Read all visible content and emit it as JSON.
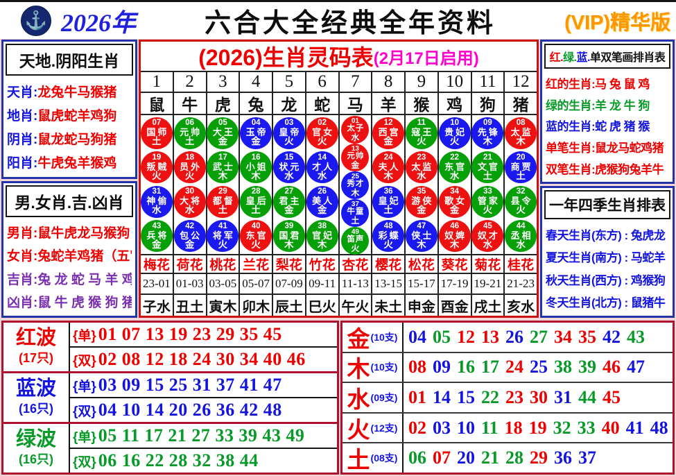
{
  "palette": {
    "red": "#ee0000",
    "green": "#089a28",
    "blue": "#1414e0",
    "magenta": "#ff00cc",
    "purple": "#7a2fb0",
    "orange": "#ff9500",
    "navy_border": "#2233aa",
    "red_border": "#cc1111",
    "dark_red_border": "#b01030"
  },
  "header": {
    "logo_icon": "anchor-emblem",
    "year": "2026年",
    "title": "六合大全经典全年资料",
    "vip": "(VIP)精华版"
  },
  "left_top": {
    "title": "天地.阴阳生肖",
    "items": [
      {
        "label": "天肖:",
        "value": "龙兔牛马猴猪"
      },
      {
        "label": "地肖:",
        "value": "鼠虎蛇羊鸡狗"
      },
      {
        "label": "阴肖:",
        "value": "鼠龙蛇马狗猪"
      },
      {
        "label": "阳肖:",
        "value": "牛虎兔羊猴鸡"
      }
    ]
  },
  "left_bottom": {
    "title": "男.女肖.吉.凶肖",
    "items": [
      {
        "text": "男肖:鼠牛虎龙马猴狗",
        "color": "red"
      },
      {
        "text": "女肖:兔蛇羊鸡猪（五宫）",
        "color": "red"
      },
      {
        "text": "吉肖:兔 龙 蛇 马 羊 鸡",
        "color": "purple"
      },
      {
        "text": "凶肖:鼠 牛 虎 猴 狗 猪",
        "color": "purple"
      }
    ]
  },
  "main_table": {
    "title": "(2026)生肖灵码表",
    "subtitle": "(2月17日启用)",
    "col_numbers": [
      "1",
      "2",
      "3",
      "4",
      "5",
      "6",
      "7",
      "8",
      "9",
      "10",
      "11",
      "12"
    ],
    "zodiacs": [
      "鼠",
      "牛",
      "虎",
      "兔",
      "龙",
      "蛇",
      "马",
      "羊",
      "猴",
      "鸡",
      "狗",
      "猪"
    ],
    "flowers": [
      "梅花",
      "荷花",
      "桃花",
      "兰花",
      "梨花",
      "竹花",
      "杏花",
      "樱花",
      "松花",
      "葵花",
      "菊花",
      "桂花"
    ],
    "times": [
      "23-01",
      "01-03",
      "03-05",
      "05-07",
      "07-09",
      "09-11",
      "11-13",
      "13-15",
      "15-17",
      "17-19",
      "19-21",
      "21-23"
    ],
    "branches": [
      "子水",
      "丑土",
      "寅木",
      "卯木",
      "辰土",
      "巳火",
      "午火",
      "未土",
      "申金",
      "酉金",
      "戌土",
      "亥水"
    ],
    "circles": [
      [
        [
          "07",
          "国师",
          "土",
          "r"
        ],
        [
          "19",
          "叛贼",
          "火",
          "r"
        ],
        [
          "31",
          "神偷",
          "水",
          "b"
        ],
        [
          "43",
          "兵将",
          "金",
          "g"
        ]
      ],
      [
        [
          "06",
          "元帅",
          "土",
          "g"
        ],
        [
          "18",
          "员外",
          "火",
          "r"
        ],
        [
          "30",
          "大将",
          "水",
          "r"
        ],
        [
          "42",
          "包公",
          "金",
          "b"
        ]
      ],
      [
        [
          "05",
          "大王",
          "金",
          "g"
        ],
        [
          "17",
          "武士",
          "木",
          "g"
        ],
        [
          "29",
          "都督",
          "土",
          "r"
        ],
        [
          "41",
          "将军",
          "火",
          "b"
        ]
      ],
      [
        [
          "04",
          "玉帝",
          "金",
          "b"
        ],
        [
          "16",
          "小姐",
          "木",
          "g"
        ],
        [
          "28",
          "皇后",
          "土",
          "g"
        ],
        [
          "40",
          "东官",
          "火",
          "r"
        ]
      ],
      [
        [
          "03",
          "皇帝",
          "火",
          "b"
        ],
        [
          "15",
          "状元",
          "水",
          "b"
        ],
        [
          "27",
          "君主",
          "金",
          "g"
        ],
        [
          "39",
          "国君",
          "木",
          "g"
        ]
      ],
      [
        [
          "02",
          "官女",
          "火",
          "r"
        ],
        [
          "14",
          "才人",
          "水",
          "b"
        ],
        [
          "26",
          "美人",
          "金",
          "b"
        ],
        [
          "38",
          "官妃",
          "木",
          "g"
        ]
      ],
      [
        [
          "01",
          "太子",
          "水",
          "r"
        ],
        [
          "13",
          "元帅",
          "金",
          "r"
        ],
        [
          "25",
          "秀才",
          "木",
          "b"
        ],
        [
          "37",
          "牛童",
          "土",
          "b"
        ],
        [
          "49",
          "笛声",
          "火",
          "g"
        ]
      ],
      [
        [
          "12",
          "西宫",
          "金",
          "r"
        ],
        [
          "24",
          "夫人",
          "木",
          "r"
        ],
        [
          "36",
          "皇妃",
          "土",
          "b"
        ],
        [
          "48",
          "彩蝶",
          "火",
          "b"
        ]
      ],
      [
        [
          "11",
          "寇王",
          "火",
          "g"
        ],
        [
          "23",
          "太监",
          "水",
          "r"
        ],
        [
          "35",
          "游侠",
          "金",
          "r"
        ],
        [
          "47",
          "侠士",
          "木",
          "b"
        ]
      ],
      [
        [
          "10",
          "贵妃",
          "火",
          "b"
        ],
        [
          "22",
          "东官",
          "水",
          "g"
        ],
        [
          "34",
          "歌女",
          "金",
          "r"
        ],
        [
          "46",
          "奴婢",
          "木",
          "r"
        ]
      ],
      [
        [
          "09",
          "先锋",
          "木",
          "b"
        ],
        [
          "21",
          "文官",
          "土",
          "g"
        ],
        [
          "33",
          "管家",
          "火",
          "g"
        ],
        [
          "45",
          "奴才",
          "水",
          "r"
        ]
      ],
      [
        [
          "08",
          "太监",
          "木",
          "r"
        ],
        [
          "20",
          "商贾",
          "土",
          "b"
        ],
        [
          "32",
          "县令",
          "火",
          "g"
        ],
        [
          "44",
          "丞相",
          "水",
          "g"
        ]
      ]
    ]
  },
  "right_top": {
    "title_parts": [
      {
        "text": "红.",
        "color": "red"
      },
      {
        "text": "绿.",
        "color": "green"
      },
      {
        "text": "蓝.",
        "color": "blue"
      },
      {
        "text": "单双笔画排肖表",
        "color": "black"
      }
    ],
    "items": [
      {
        "text": "红的生肖:马 兔 鼠 鸡",
        "color": "red"
      },
      {
        "text": "绿的生肖:羊 龙 牛 狗",
        "color": "green"
      },
      {
        "text": "蓝的生肖:蛇 虎 猪 猴",
        "color": "blue"
      },
      {
        "text": "单笔生肖:鼠龙马蛇鸡猪",
        "color": "red"
      },
      {
        "text": "双笔生肖:虎猴狗兔羊牛",
        "color": "red"
      }
    ]
  },
  "right_bottom": {
    "title": "一年四季生肖排表",
    "items": [
      "春天生肖(东方) : 兔虎龙",
      "夏天生肖(南方) : 马蛇羊",
      "秋天生肖(西方) : 鸡猴狗",
      "冬天生肖(北方) : 鼠猪牛"
    ]
  },
  "waves": [
    {
      "name": "红波",
      "count": "(17只)",
      "color": "red",
      "odd_tag": "{单}",
      "odd": "01 07 13 19 23 29 35 45",
      "even_tag": "{双}",
      "even": "02 08 12 18 24 30 34 40 46"
    },
    {
      "name": "蓝波",
      "count": "(16只)",
      "color": "blue",
      "odd_tag": "{单}",
      "odd": "03 09 15 25 31 37 41 47",
      "even_tag": "{双}",
      "even": "04 10 14 20 26 36 42 48"
    },
    {
      "name": "绿波",
      "count": "(16只)",
      "color": "green",
      "odd_tag": "{单}",
      "odd": "05 11 17 21 27 33 39 43 49",
      "even_tag": "{双}",
      "even": "06 16 22 28 32 38 44"
    }
  ],
  "elements": [
    {
      "name": "金",
      "count": "(10支)",
      "numbers": [
        [
          "04",
          "b"
        ],
        [
          "05",
          "g"
        ],
        [
          "12",
          "r"
        ],
        [
          "13",
          "r"
        ],
        [
          "26",
          "b"
        ],
        [
          "27",
          "g"
        ],
        [
          "34",
          "r"
        ],
        [
          "35",
          "r"
        ],
        [
          "42",
          "b"
        ],
        [
          "43",
          "g"
        ]
      ]
    },
    {
      "name": "木",
      "count": "(10支)",
      "numbers": [
        [
          "08",
          "r"
        ],
        [
          "09",
          "b"
        ],
        [
          "16",
          "g"
        ],
        [
          "17",
          "g"
        ],
        [
          "24",
          "r"
        ],
        [
          "25",
          "b"
        ],
        [
          "38",
          "g"
        ],
        [
          "39",
          "g"
        ],
        [
          "46",
          "r"
        ],
        [
          "47",
          "b"
        ]
      ]
    },
    {
      "name": "水",
      "count": "(09支)",
      "numbers": [
        [
          "01",
          "r"
        ],
        [
          "14",
          "b"
        ],
        [
          "15",
          "b"
        ],
        [
          "22",
          "g"
        ],
        [
          "23",
          "r"
        ],
        [
          "30",
          "r"
        ],
        [
          "31",
          "b"
        ],
        [
          "44",
          "g"
        ],
        [
          "45",
          "r"
        ]
      ]
    },
    {
      "name": "火",
      "count": "(12支)",
      "numbers": [
        [
          "02",
          "r"
        ],
        [
          "03",
          "b"
        ],
        [
          "10",
          "b"
        ],
        [
          "11",
          "g"
        ],
        [
          "18",
          "r"
        ],
        [
          "19",
          "r"
        ],
        [
          "32",
          "g"
        ],
        [
          "33",
          "g"
        ],
        [
          "40",
          "r"
        ],
        [
          "41",
          "b"
        ],
        [
          "48",
          "b"
        ],
        [
          "49",
          "g"
        ]
      ]
    },
    {
      "name": "土",
      "count": "(08支)",
      "numbers": [
        [
          "06",
          "g"
        ],
        [
          "07",
          "r"
        ],
        [
          "20",
          "b"
        ],
        [
          "21",
          "g"
        ],
        [
          "28",
          "g"
        ],
        [
          "29",
          "r"
        ],
        [
          "36",
          "b"
        ],
        [
          "37",
          "b"
        ]
      ]
    }
  ]
}
